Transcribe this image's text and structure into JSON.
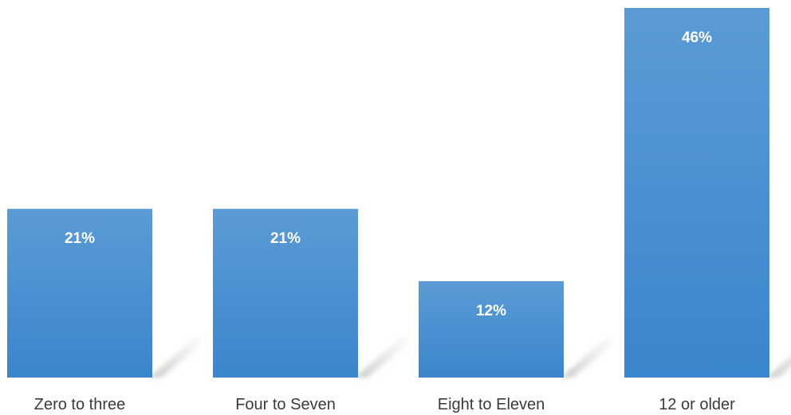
{
  "chart_data": {
    "type": "bar",
    "categories": [
      "Zero to three",
      "Four to Seven",
      "Eight to Eleven",
      "12 or older"
    ],
    "values": [
      21,
      21,
      12,
      46
    ],
    "data_labels": [
      "21%",
      "21%",
      "12%",
      "46%"
    ],
    "title": "",
    "xlabel": "",
    "ylabel": "",
    "ylim": [
      0,
      46
    ],
    "grid": false,
    "legend": "none",
    "bar_color_top": "#5b9bd5",
    "bar_color_bottom": "#3a86cc"
  }
}
